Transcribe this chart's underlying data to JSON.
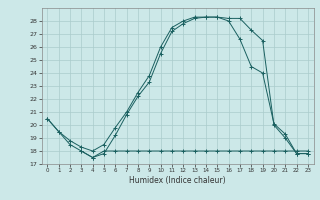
{
  "xlabel": "Humidex (Indice chaleur)",
  "bg_color": "#cce8e8",
  "grid_color_major": "#aacccc",
  "grid_color_minor": "#bbdddd",
  "line_color": "#1a6060",
  "xlim": [
    -0.5,
    23.5
  ],
  "ylim": [
    17,
    29
  ],
  "yticks": [
    17,
    18,
    19,
    20,
    21,
    22,
    23,
    24,
    25,
    26,
    27,
    28
  ],
  "xticks": [
    0,
    1,
    2,
    3,
    4,
    5,
    6,
    7,
    8,
    9,
    10,
    11,
    12,
    13,
    14,
    15,
    16,
    17,
    18,
    19,
    20,
    21,
    22,
    23
  ],
  "s1x": [
    0,
    1,
    2,
    3,
    4,
    5,
    6,
    7,
    8,
    9,
    10,
    11,
    12,
    13,
    14,
    15,
    16,
    17,
    18,
    19,
    20,
    21,
    22,
    23
  ],
  "s1y": [
    20.5,
    19.5,
    18.5,
    18.0,
    17.5,
    17.8,
    19.2,
    20.8,
    22.2,
    23.3,
    25.5,
    27.2,
    27.8,
    28.2,
    28.3,
    28.3,
    28.2,
    28.2,
    27.3,
    26.5,
    20.0,
    19.0,
    17.8,
    17.8
  ],
  "s2x": [
    0,
    1,
    2,
    3,
    4,
    5,
    6,
    7,
    8,
    9,
    10,
    11,
    12,
    13,
    14,
    15,
    16,
    17,
    18,
    19,
    20,
    21,
    22,
    23
  ],
  "s2y": [
    20.5,
    19.5,
    18.8,
    18.3,
    18.0,
    18.5,
    19.8,
    21.0,
    22.5,
    23.8,
    26.0,
    27.5,
    28.0,
    28.3,
    28.3,
    28.3,
    28.0,
    26.6,
    24.5,
    24.0,
    20.1,
    19.3,
    17.8,
    17.8
  ],
  "s3x": [
    3,
    4,
    5,
    6,
    7,
    8,
    9,
    10,
    11,
    12,
    13,
    14,
    15,
    16,
    17,
    18,
    19,
    20,
    21,
    22,
    23
  ],
  "s3y": [
    18.0,
    17.5,
    18.0,
    18.0,
    18.0,
    18.0,
    18.0,
    18.0,
    18.0,
    18.0,
    18.0,
    18.0,
    18.0,
    18.0,
    18.0,
    18.0,
    18.0,
    18.0,
    18.0,
    18.0,
    18.0
  ]
}
